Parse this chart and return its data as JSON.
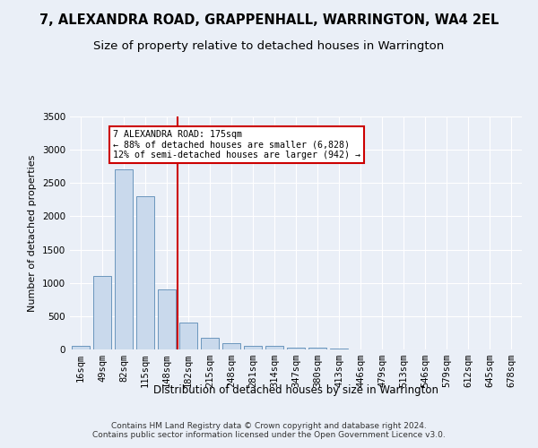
{
  "title": "7, ALEXANDRA ROAD, GRAPPENHALL, WARRINGTON, WA4 2EL",
  "subtitle": "Size of property relative to detached houses in Warrington",
  "xlabel": "Distribution of detached houses by size in Warrington",
  "ylabel": "Number of detached properties",
  "categories": [
    "16sqm",
    "49sqm",
    "82sqm",
    "115sqm",
    "148sqm",
    "182sqm",
    "215sqm",
    "248sqm",
    "281sqm",
    "314sqm",
    "347sqm",
    "380sqm",
    "413sqm",
    "446sqm",
    "479sqm",
    "513sqm",
    "546sqm",
    "579sqm",
    "612sqm",
    "645sqm",
    "678sqm"
  ],
  "values": [
    50,
    1100,
    2700,
    2300,
    900,
    400,
    175,
    100,
    60,
    50,
    30,
    30,
    20,
    5,
    2,
    1,
    1,
    0,
    0,
    0,
    0
  ],
  "bar_color": "#c9d9ec",
  "bar_edge_color": "#5a8ab5",
  "vline_index": 5,
  "vline_color": "#cc0000",
  "annotation_line1": "7 ALEXANDRA ROAD: 175sqm",
  "annotation_line2": "← 88% of detached houses are smaller (6,828)",
  "annotation_line3": "12% of semi-detached houses are larger (942) →",
  "annotation_box_color": "#ffffff",
  "annotation_box_edge": "#cc0000",
  "ylim": [
    0,
    3500
  ],
  "yticks": [
    0,
    500,
    1000,
    1500,
    2000,
    2500,
    3000,
    3500
  ],
  "bg_color": "#eaeff7",
  "plot_bg_color": "#eaeff7",
  "grid_color": "#ffffff",
  "footer": "Contains HM Land Registry data © Crown copyright and database right 2024.\nContains public sector information licensed under the Open Government Licence v3.0.",
  "title_fontsize": 10.5,
  "subtitle_fontsize": 9.5,
  "xlabel_fontsize": 8.5,
  "ylabel_fontsize": 8,
  "tick_fontsize": 7.5,
  "footer_fontsize": 6.5
}
